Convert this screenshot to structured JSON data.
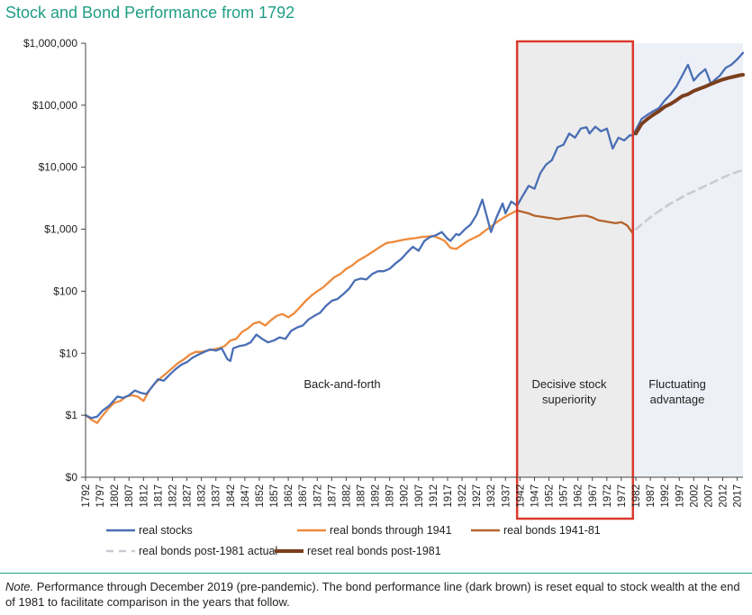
{
  "title": "Stock and Bond Performance from 1792",
  "note": {
    "label": "Note.",
    "text": "Performance through December 2019 (pre-pandemic). The bond performance line (dark brown) is reset equal to stock wealth at the end of 1981 to facilitate comparison in the years that follow."
  },
  "colors": {
    "real_stocks": "#4a6fb5",
    "real_bonds_through_1941": "#ed8a3c",
    "real_bonds_1941_81": "#b5632b",
    "real_bonds_post_1981_actual": "#c8ccd2",
    "reset_real_bonds_post_1981": "#7b3f1e",
    "highlight_box": "#d9392b",
    "shade_decisive": "#ececec",
    "shade_fluctuating": "#edf0f7",
    "axis": "#444444"
  },
  "chart_data": {
    "type": "line",
    "y_scale": "log",
    "ylim": [
      0.1,
      1000000
    ],
    "xlim": [
      1792,
      2019
    ],
    "grid": false,
    "legend_position": "bottom",
    "y_ticks": [
      {
        "value": 0.1,
        "label": "$0"
      },
      {
        "value": 1,
        "label": "$1"
      },
      {
        "value": 10,
        "label": "$10"
      },
      {
        "value": 100,
        "label": "$100"
      },
      {
        "value": 1000,
        "label": "$1,000"
      },
      {
        "value": 10000,
        "label": "$10,000"
      },
      {
        "value": 100000,
        "label": "$100,000"
      },
      {
        "value": 1000000,
        "label": "$1,000,000"
      }
    ],
    "x_ticks": [
      1792,
      1797,
      1802,
      1807,
      1812,
      1817,
      1822,
      1827,
      1832,
      1837,
      1842,
      1847,
      1852,
      1857,
      1862,
      1867,
      1872,
      1877,
      1882,
      1887,
      1892,
      1897,
      1902,
      1907,
      1912,
      1917,
      1922,
      1927,
      1932,
      1937,
      1942,
      1947,
      1952,
      1957,
      1962,
      1967,
      1972,
      1977,
      1982,
      1987,
      1992,
      1997,
      2002,
      2007,
      2012,
      2017
    ],
    "regions": [
      {
        "label_lines": [
          "Back-and-forth"
        ],
        "x_start": 1792,
        "x_end": 1941
      },
      {
        "label_lines": [
          "Decisive stock",
          "superiority"
        ],
        "x_start": 1941,
        "x_end": 1981,
        "highlighted": true
      },
      {
        "label_lines": [
          "Fluctuating",
          "advantage"
        ],
        "x_start": 1981,
        "x_end": 2019
      }
    ],
    "series": [
      {
        "name": "real stocks",
        "style": "solid",
        "x": [
          1792,
          1794,
          1796,
          1798,
          1800,
          1803,
          1805,
          1807,
          1809,
          1811,
          1813,
          1815,
          1817,
          1819,
          1821,
          1823,
          1825,
          1827,
          1829,
          1831,
          1833,
          1835,
          1837,
          1839,
          1841,
          1842,
          1843,
          1845,
          1847,
          1849,
          1851,
          1853,
          1855,
          1857,
          1859,
          1861,
          1863,
          1865,
          1867,
          1869,
          1871,
          1873,
          1875,
          1877,
          1879,
          1881,
          1883,
          1885,
          1887,
          1889,
          1891,
          1893,
          1895,
          1897,
          1899,
          1901,
          1903,
          1905,
          1907,
          1909,
          1911,
          1913,
          1915,
          1917,
          1918,
          1920,
          1921,
          1923,
          1925,
          1927,
          1929,
          1930,
          1932,
          1934,
          1936,
          1937,
          1939,
          1941,
          1943,
          1945,
          1947,
          1949,
          1951,
          1953,
          1955,
          1957,
          1959,
          1961,
          1963,
          1965,
          1966,
          1968,
          1970,
          1972,
          1974,
          1976,
          1978,
          1980,
          1981,
          1982,
          1984,
          1986,
          1988,
          1990,
          1992,
          1994,
          1996,
          1998,
          2000,
          2002,
          2004,
          2006,
          2008,
          2009,
          2011,
          2013,
          2015,
          2017,
          2019
        ],
        "values": [
          1,
          0.9,
          0.95,
          1.2,
          1.4,
          2.0,
          1.9,
          2.1,
          2.5,
          2.3,
          2.2,
          2.9,
          3.8,
          3.6,
          4.5,
          5.5,
          6.5,
          7.2,
          8.5,
          9.5,
          10.5,
          11.5,
          11,
          12,
          8.0,
          7.5,
          12,
          13,
          13.5,
          15,
          20,
          17,
          15,
          16,
          18,
          17,
          23,
          26,
          28,
          35,
          40,
          45,
          58,
          70,
          75,
          90,
          110,
          150,
          160,
          155,
          190,
          210,
          210,
          230,
          280,
          330,
          420,
          520,
          450,
          650,
          750,
          800,
          900,
          700,
          650,
          840,
          800,
          1000,
          1200,
          1700,
          3000,
          2000,
          900,
          1600,
          2600,
          1800,
          2800,
          2400,
          3500,
          5000,
          4500,
          8000,
          11000,
          13000,
          21000,
          23000,
          35000,
          30000,
          42000,
          44000,
          35000,
          45000,
          38000,
          42000,
          20000,
          30000,
          27000,
          33000,
          32000,
          40000,
          60000,
          70000,
          80000,
          90000,
          120000,
          150000,
          200000,
          300000,
          450000,
          250000,
          320000,
          380000,
          220000,
          250000,
          300000,
          400000,
          450000,
          550000,
          700000
        ]
      },
      {
        "name": "real bonds through 1941",
        "style": "solid",
        "x": [
          1792,
          1794,
          1796,
          1798,
          1800,
          1802,
          1804,
          1806,
          1808,
          1810,
          1812,
          1814,
          1816,
          1818,
          1820,
          1822,
          1824,
          1826,
          1828,
          1830,
          1832,
          1834,
          1836,
          1838,
          1840,
          1842,
          1844,
          1846,
          1848,
          1850,
          1852,
          1854,
          1856,
          1858,
          1860,
          1862,
          1864,
          1866,
          1868,
          1870,
          1872,
          1874,
          1876,
          1878,
          1880,
          1882,
          1884,
          1886,
          1888,
          1890,
          1892,
          1894,
          1896,
          1898,
          1900,
          1902,
          1904,
          1906,
          1908,
          1910,
          1912,
          1914,
          1916,
          1918,
          1920,
          1922,
          1924,
          1926,
          1928,
          1930,
          1932,
          1934,
          1936,
          1938,
          1940,
          1941
        ],
        "values": [
          1,
          0.85,
          0.75,
          1.0,
          1.3,
          1.6,
          1.7,
          2.0,
          2.1,
          2.0,
          1.7,
          2.5,
          3.3,
          4.0,
          4.8,
          5.8,
          7.0,
          8.0,
          9.5,
          10.5,
          10.5,
          11,
          11.5,
          12,
          13,
          16,
          17,
          22,
          25,
          30,
          32,
          28,
          34,
          40,
          43,
          38,
          44,
          55,
          70,
          85,
          100,
          115,
          140,
          170,
          190,
          230,
          260,
          310,
          350,
          400,
          460,
          530,
          600,
          620,
          650,
          680,
          700,
          720,
          750,
          760,
          780,
          720,
          650,
          500,
          480,
          560,
          650,
          720,
          800,
          950,
          1100,
          1300,
          1500,
          1700,
          1900,
          2000
        ]
      },
      {
        "name": "real bonds 1941-81",
        "style": "solid",
        "x": [
          1941,
          1943,
          1945,
          1947,
          1949,
          1951,
          1953,
          1955,
          1957,
          1959,
          1961,
          1963,
          1965,
          1967,
          1969,
          1971,
          1973,
          1975,
          1977,
          1979,
          1981
        ],
        "values": [
          2000,
          1900,
          1800,
          1650,
          1600,
          1550,
          1500,
          1450,
          1500,
          1550,
          1600,
          1650,
          1650,
          1550,
          1400,
          1350,
          1300,
          1250,
          1300,
          1150,
          850
        ]
      },
      {
        "name": "real bonds post-1981 actual",
        "style": "dashed",
        "x": [
          1982,
          1985,
          1988,
          1991,
          1994,
          1997,
          2000,
          2003,
          2006,
          2009,
          2012,
          2015,
          2019
        ],
        "values": [
          1000,
          1300,
          1700,
          2100,
          2600,
          3100,
          3700,
          4300,
          5000,
          5800,
          6800,
          7800,
          9000
        ]
      },
      {
        "name": "reset real bonds post-1981",
        "style": "solid",
        "x": [
          1982,
          1984,
          1986,
          1988,
          1990,
          1992,
          1994,
          1996,
          1998,
          2000,
          2002,
          2004,
          2006,
          2008,
          2010,
          2012,
          2014,
          2016,
          2018,
          2019
        ],
        "values": [
          35000,
          50000,
          60000,
          70000,
          80000,
          95000,
          105000,
          120000,
          140000,
          150000,
          170000,
          185000,
          200000,
          220000,
          240000,
          260000,
          275000,
          290000,
          305000,
          310000
        ]
      }
    ]
  }
}
